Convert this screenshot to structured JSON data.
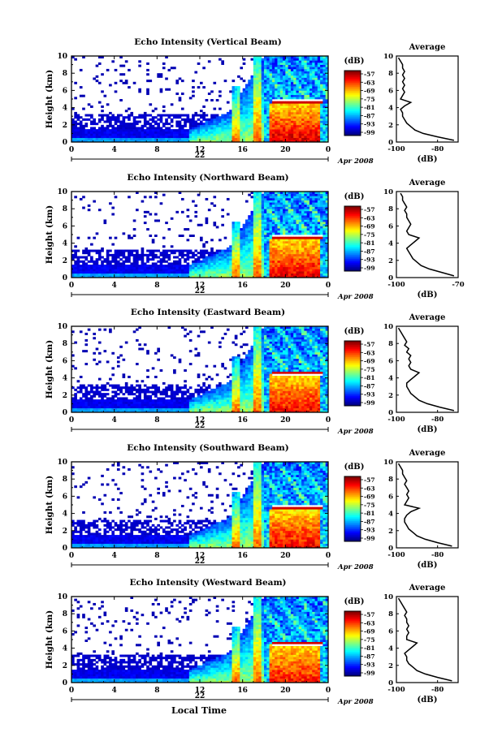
{
  "figure": {
    "xlabel": "Local Time",
    "date_label": "Apr 2008"
  },
  "chart_data": [
    {
      "type": "heatmap",
      "title": "Echo Intensity (Vertical Beam)",
      "ylabel": "Height (km)",
      "x_ticks": [
        "0",
        "4",
        "8",
        "12",
        "16",
        "20",
        "0"
      ],
      "x_range": [
        0,
        24
      ],
      "y_ticks": [
        "0",
        "2",
        "4",
        "6",
        "8",
        "10"
      ],
      "y_range": [
        0,
        10
      ],
      "day_label": "22",
      "colorbar": {
        "label": "(dB)",
        "ticks": [
          "-57",
          "-63",
          "-69",
          "-75",
          "-81",
          "-87",
          "-93",
          "-99"
        ]
      },
      "avg": {
        "title": "Average",
        "xlabel": "(dB)",
        "x_ticks": [
          "-100",
          "-80"
        ],
        "x_range": [
          -100,
          -70
        ],
        "heights": [
          0.2,
          0.6,
          1.0,
          1.4,
          1.8,
          2.2,
          2.6,
          3.0,
          3.4,
          3.8,
          4.2,
          4.6,
          5.0,
          5.4,
          5.8,
          6.2,
          6.6,
          7.0,
          7.4,
          7.8,
          8.2,
          8.6,
          9.0,
          9.4,
          9.8
        ],
        "values": [
          -72,
          -80,
          -87,
          -91,
          -93,
          -95,
          -96,
          -97,
          -97,
          -98,
          -96,
          -93,
          -98,
          -97,
          -96,
          -97,
          -96,
          -97,
          -96,
          -97,
          -96,
          -97,
          -97,
          -98,
          -99
        ]
      },
      "hot": 1.0,
      "stripe_at": 4.7
    },
    {
      "type": "heatmap",
      "title": "Echo Intensity (Northward Beam)",
      "ylabel": "Height (km)",
      "x_ticks": [
        "0",
        "4",
        "8",
        "12",
        "16",
        "20",
        "0"
      ],
      "x_range": [
        0,
        24
      ],
      "y_ticks": [
        "0",
        "2",
        "4",
        "6",
        "8",
        "10"
      ],
      "y_range": [
        0,
        10
      ],
      "day_label": "22",
      "colorbar": {
        "label": "(dB)",
        "ticks": [
          "-57",
          "-63",
          "-69",
          "-75",
          "-81",
          "-87",
          "-93",
          "-99"
        ]
      },
      "avg": {
        "title": "Average",
        "xlabel": "(dB)",
        "x_ticks": [
          "-100",
          "-70"
        ],
        "x_range": [
          -100,
          -70
        ],
        "heights": [
          0.2,
          0.6,
          1.0,
          1.4,
          1.8,
          2.2,
          2.6,
          3.0,
          3.4,
          3.8,
          4.2,
          4.6,
          5.0,
          5.4,
          5.8,
          6.2,
          6.6,
          7.0,
          7.4,
          7.8,
          8.2,
          8.6,
          9.0,
          9.4,
          9.8
        ],
        "values": [
          -72,
          -78,
          -84,
          -88,
          -90,
          -92,
          -93,
          -94,
          -95,
          -93,
          -91,
          -89,
          -94,
          -95,
          -94,
          -93,
          -94,
          -95,
          -95,
          -96,
          -95,
          -96,
          -97,
          -97,
          -98
        ]
      },
      "hot": 0.95,
      "stripe_at": 4.7
    },
    {
      "type": "heatmap",
      "title": "Echo Intensity (Eastward Beam)",
      "ylabel": "Height (km)",
      "x_ticks": [
        "0",
        "4",
        "8",
        "12",
        "16",
        "20",
        "0"
      ],
      "x_range": [
        0,
        24
      ],
      "y_ticks": [
        "0",
        "2",
        "4",
        "6",
        "8",
        "10"
      ],
      "y_range": [
        0,
        10
      ],
      "day_label": "22",
      "colorbar": {
        "label": "(dB)",
        "ticks": [
          "-57",
          "-63",
          "-69",
          "-75",
          "-81",
          "-87",
          "-93",
          "-99"
        ]
      },
      "avg": {
        "title": "Average",
        "xlabel": "(dB)",
        "x_ticks": [
          "-100",
          "-80"
        ],
        "x_range": [
          -100,
          -70
        ],
        "heights": [
          0.2,
          0.6,
          1.0,
          1.4,
          1.8,
          2.2,
          2.6,
          3.0,
          3.4,
          3.8,
          4.2,
          4.6,
          5.0,
          5.4,
          5.8,
          6.2,
          6.6,
          7.0,
          7.4,
          7.8,
          8.2,
          8.6,
          9.0,
          9.4,
          9.8
        ],
        "values": [
          -72,
          -79,
          -85,
          -89,
          -91,
          -93,
          -94,
          -95,
          -95,
          -93,
          -91,
          -89,
          -93,
          -94,
          -93,
          -94,
          -93,
          -95,
          -94,
          -96,
          -95,
          -96,
          -97,
          -98,
          -99
        ]
      },
      "hot": 0.85,
      "stripe_at": 4.6
    },
    {
      "type": "heatmap",
      "title": "Echo Intensity (Southward Beam)",
      "ylabel": "Height (km)",
      "x_ticks": [
        "0",
        "4",
        "8",
        "12",
        "16",
        "20",
        "0"
      ],
      "x_range": [
        0,
        24
      ],
      "y_ticks": [
        "0",
        "2",
        "4",
        "6",
        "8",
        "10"
      ],
      "y_range": [
        0,
        10
      ],
      "day_label": "22",
      "colorbar": {
        "label": "(dB)",
        "ticks": [
          "-57",
          "-63",
          "-69",
          "-75",
          "-81",
          "-87",
          "-93",
          "-99"
        ]
      },
      "avg": {
        "title": "Average",
        "xlabel": "(dB)",
        "x_ticks": [
          "-100",
          "-80"
        ],
        "x_range": [
          -100,
          -70
        ],
        "heights": [
          0.2,
          0.6,
          1.0,
          1.4,
          1.8,
          2.2,
          2.6,
          3.0,
          3.4,
          3.8,
          4.2,
          4.6,
          5.0,
          5.4,
          5.8,
          6.2,
          6.6,
          7.0,
          7.4,
          7.8,
          8.2,
          8.6,
          9.0,
          9.4,
          9.8
        ],
        "values": [
          -73,
          -80,
          -86,
          -90,
          -92,
          -94,
          -95,
          -96,
          -96,
          -95,
          -93,
          -89,
          -96,
          -95,
          -94,
          -95,
          -94,
          -95,
          -96,
          -95,
          -96,
          -97,
          -97,
          -98,
          -99
        ]
      },
      "hot": 0.9,
      "stripe_at": 4.7
    },
    {
      "type": "heatmap",
      "title": "Echo Intensity (Westward Beam)",
      "ylabel": "Height (km)",
      "x_ticks": [
        "0",
        "4",
        "8",
        "12",
        "16",
        "20",
        "0"
      ],
      "x_range": [
        0,
        24
      ],
      "y_ticks": [
        "0",
        "2",
        "4",
        "6",
        "8",
        "10"
      ],
      "y_range": [
        0,
        10
      ],
      "day_label": "22",
      "colorbar": {
        "label": "(dB)",
        "ticks": [
          "-57",
          "-63",
          "-69",
          "-75",
          "-81",
          "-87",
          "-93",
          "-99"
        ]
      },
      "avg": {
        "title": "Average",
        "xlabel": "(dB)",
        "x_ticks": [
          "-100",
          "-80"
        ],
        "x_range": [
          -100,
          -70
        ],
        "heights": [
          0.2,
          0.6,
          1.0,
          1.4,
          1.8,
          2.2,
          2.6,
          3.0,
          3.4,
          3.8,
          4.2,
          4.6,
          5.0,
          5.4,
          5.8,
          6.2,
          6.6,
          7.0,
          7.4,
          7.8,
          8.2,
          8.6,
          9.0,
          9.4,
          9.8
        ],
        "values": [
          -73,
          -80,
          -86,
          -90,
          -92,
          -94,
          -95,
          -95,
          -96,
          -94,
          -92,
          -90,
          -95,
          -95,
          -94,
          -95,
          -94,
          -95,
          -95,
          -96,
          -95,
          -96,
          -97,
          -98,
          -99
        ]
      },
      "hot": 0.8,
      "stripe_at": 4.6
    }
  ]
}
